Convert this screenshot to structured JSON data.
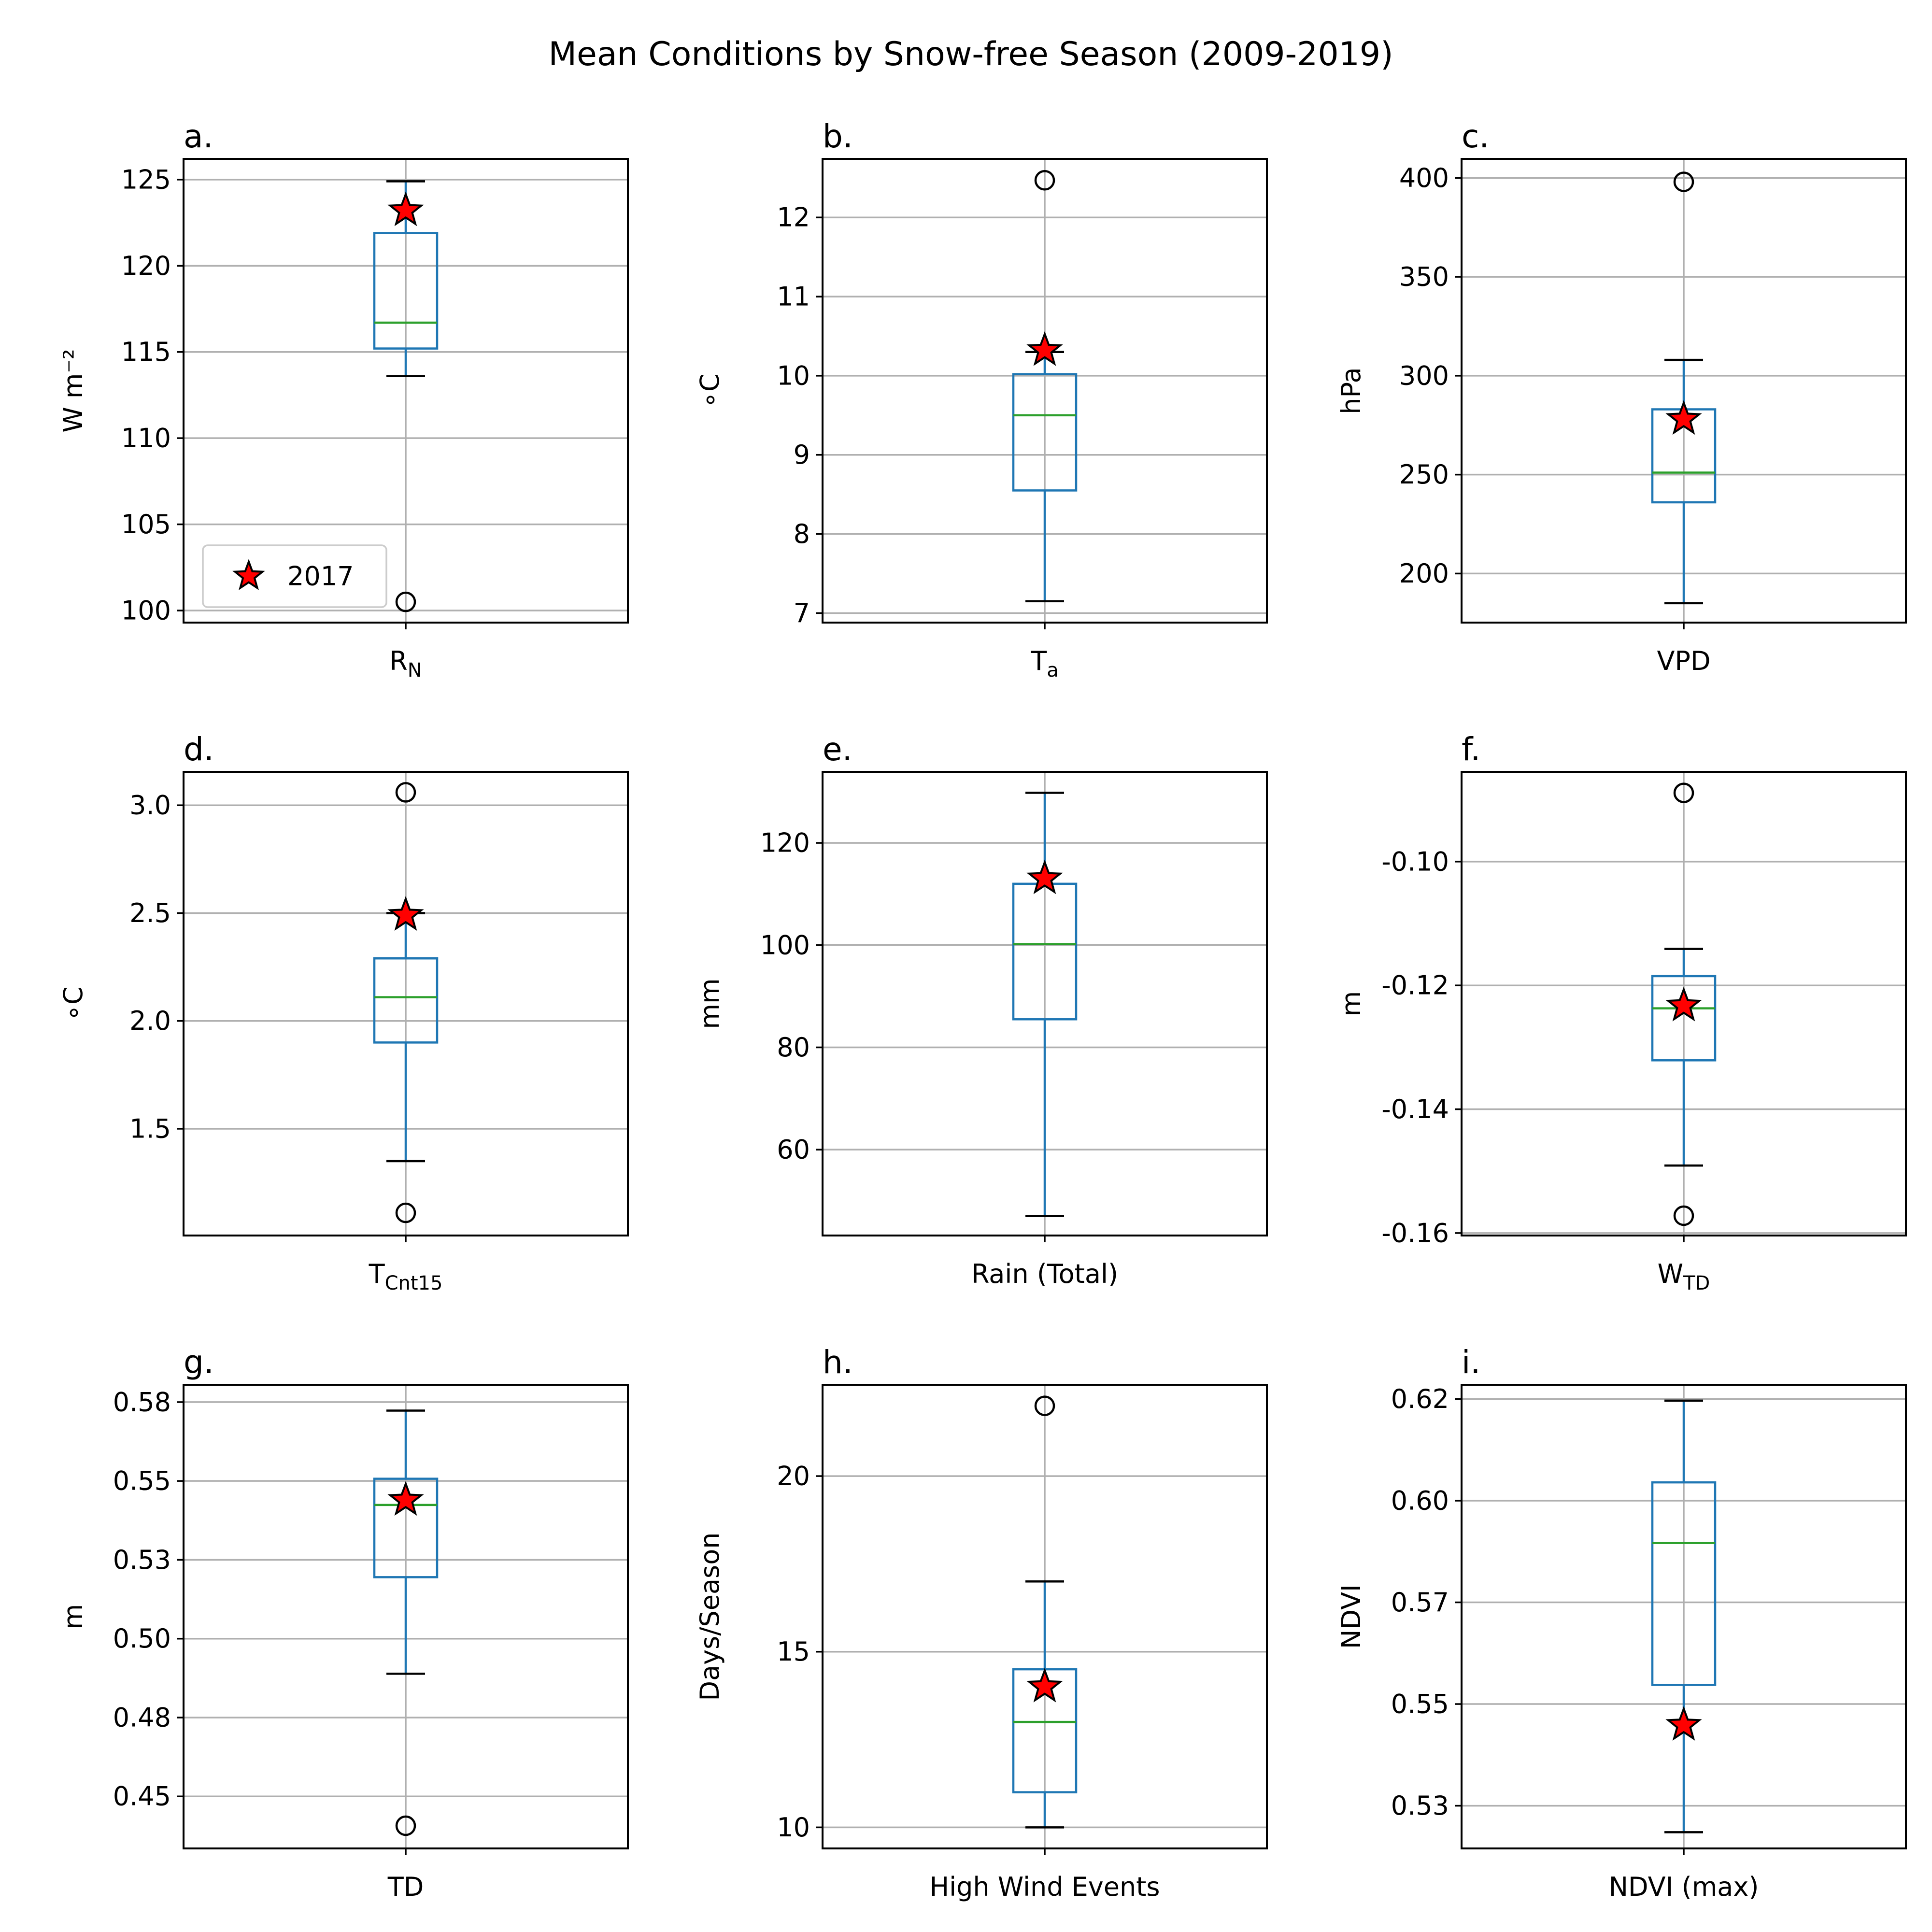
{
  "title": "Mean Conditions by Snow-free Season (2009-2019)",
  "legend_label": "2017",
  "colors": {
    "box": "#1f77b4",
    "median": "#2ca02c",
    "grid": "#b0b0b0",
    "marker_fill": "#ff0000",
    "marker_edge": "#000000",
    "axes": "#000000"
  },
  "chart_data": [
    {
      "type": "box",
      "panel_label": "a.",
      "xlabel_main": "R",
      "xlabel_sub": "N",
      "ylabel": "W m⁻²",
      "ylim": [
        99.3,
        126.2
      ],
      "yticks": [
        100,
        105,
        110,
        115,
        120,
        125
      ],
      "ytick_labels": [
        "100",
        "105",
        "110",
        "115",
        "120",
        "125"
      ],
      "q1": 115.2,
      "median": 116.7,
      "q3": 121.9,
      "whisker_low": 113.6,
      "whisker_high": 124.9,
      "outliers": [
        100.5
      ],
      "value_2017": 123.2,
      "grid": true
    },
    {
      "type": "box",
      "panel_label": "b.",
      "xlabel_main": "T",
      "xlabel_sub": "a",
      "ylabel": "∘C",
      "ylim": [
        6.88,
        12.74
      ],
      "yticks": [
        7,
        8,
        9,
        10,
        11,
        12
      ],
      "ytick_labels": [
        "7",
        "8",
        "9",
        "10",
        "11",
        "12"
      ],
      "q1": 8.55,
      "median": 9.5,
      "q3": 10.02,
      "whisker_low": 7.15,
      "whisker_high": 10.3,
      "outliers": [
        12.47
      ],
      "value_2017": 10.32,
      "grid": true
    },
    {
      "type": "box",
      "panel_label": "c.",
      "xlabel_main": "VPD",
      "xlabel_sub": "",
      "ylabel": "hPa",
      "ylim": [
        175.2,
        409.6
      ],
      "yticks": [
        200,
        250,
        300,
        350,
        400
      ],
      "ytick_labels": [
        "200",
        "250",
        "300",
        "350",
        "400"
      ],
      "q1": 236,
      "median": 251,
      "q3": 283,
      "whisker_low": 185,
      "whisker_high": 308,
      "outliers": [
        398
      ],
      "value_2017": 278,
      "grid": true
    },
    {
      "type": "box",
      "panel_label": "d.",
      "xlabel_main": "T",
      "xlabel_sub": "Cnt15",
      "ylabel": "∘C",
      "ylim": [
        1.005,
        3.155
      ],
      "yticks": [
        1.5,
        2.0,
        2.5,
        3.0
      ],
      "ytick_labels": [
        "1.5",
        "2.0",
        "2.5",
        "3.0"
      ],
      "q1": 1.9,
      "median": 2.11,
      "q3": 2.29,
      "whisker_low": 1.35,
      "whisker_high": 2.5,
      "outliers": [
        3.06,
        1.11
      ],
      "value_2017": 2.49,
      "grid": true
    },
    {
      "type": "box",
      "panel_label": "e.",
      "xlabel_main": "Rain (Total)",
      "xlabel_sub": "",
      "ylabel": "mm",
      "ylim": [
        43.2,
        133.9
      ],
      "yticks": [
        60,
        80,
        100,
        120
      ],
      "ytick_labels": [
        "60",
        "80",
        "100",
        "120"
      ],
      "q1": 85.5,
      "median": 100.2,
      "q3": 112,
      "whisker_low": 47,
      "whisker_high": 129.8,
      "outliers": [],
      "value_2017": 113,
      "grid": true
    },
    {
      "type": "box",
      "panel_label": "f.",
      "xlabel_main": "W",
      "xlabel_sub": "TD",
      "ylabel": "m",
      "ylim": [
        -0.1604,
        -0.0855
      ],
      "yticks": [
        -0.16,
        -0.14,
        -0.12,
        -0.1
      ],
      "ytick_labels": [
        "-0.16",
        "-0.14",
        "-0.12",
        "-0.10"
      ],
      "q1": -0.1321,
      "median": -0.1237,
      "q3": -0.1185,
      "whisker_low": -0.1491,
      "whisker_high": -0.1141,
      "outliers": [
        -0.0889,
        -0.1572
      ],
      "value_2017": -0.1233,
      "grid": true
    },
    {
      "type": "box",
      "panel_label": "g.",
      "xlabel_main": "TD",
      "xlabel_sub": "",
      "ylabel": "m",
      "ylim": [
        0.4335,
        0.5805
      ],
      "yticks": [
        0.45,
        0.475,
        0.5,
        0.525,
        0.55,
        0.575
      ],
      "ytick_labels": [
        "0.45",
        "0.48",
        "0.50",
        "0.53",
        "0.55",
        "0.58"
      ],
      "q1": 0.5195,
      "median": 0.5424,
      "q3": 0.5507,
      "whisker_low": 0.4889,
      "whisker_high": 0.5723,
      "outliers": [
        0.4407
      ],
      "value_2017": 0.5439,
      "grid": true
    },
    {
      "type": "box",
      "panel_label": "h.",
      "xlabel_main": "High Wind Events",
      "xlabel_sub": "",
      "ylabel": "Days/Season",
      "ylim": [
        9.4,
        22.6
      ],
      "yticks": [
        10,
        15,
        20
      ],
      "ytick_labels": [
        "10",
        "15",
        "20"
      ],
      "q1": 11,
      "median": 13,
      "q3": 14.5,
      "whisker_low": 10,
      "whisker_high": 17,
      "outliers": [
        22
      ],
      "value_2017": 14,
      "grid": true
    },
    {
      "type": "box",
      "panel_label": "i.",
      "xlabel_main": "NDVI (max)",
      "xlabel_sub": "",
      "ylabel": "NDVI",
      "ylim": [
        0.5145,
        0.6285
      ],
      "yticks": [
        0.525,
        0.55,
        0.575,
        0.6,
        0.625
      ],
      "ytick_labels": [
        "0.53",
        "0.55",
        "0.57",
        "0.60",
        "0.62"
      ],
      "q1": 0.5547,
      "median": 0.5896,
      "q3": 0.6045,
      "whisker_low": 0.5185,
      "whisker_high": 0.6246,
      "outliers": [],
      "value_2017": 0.5448,
      "grid": true
    }
  ]
}
